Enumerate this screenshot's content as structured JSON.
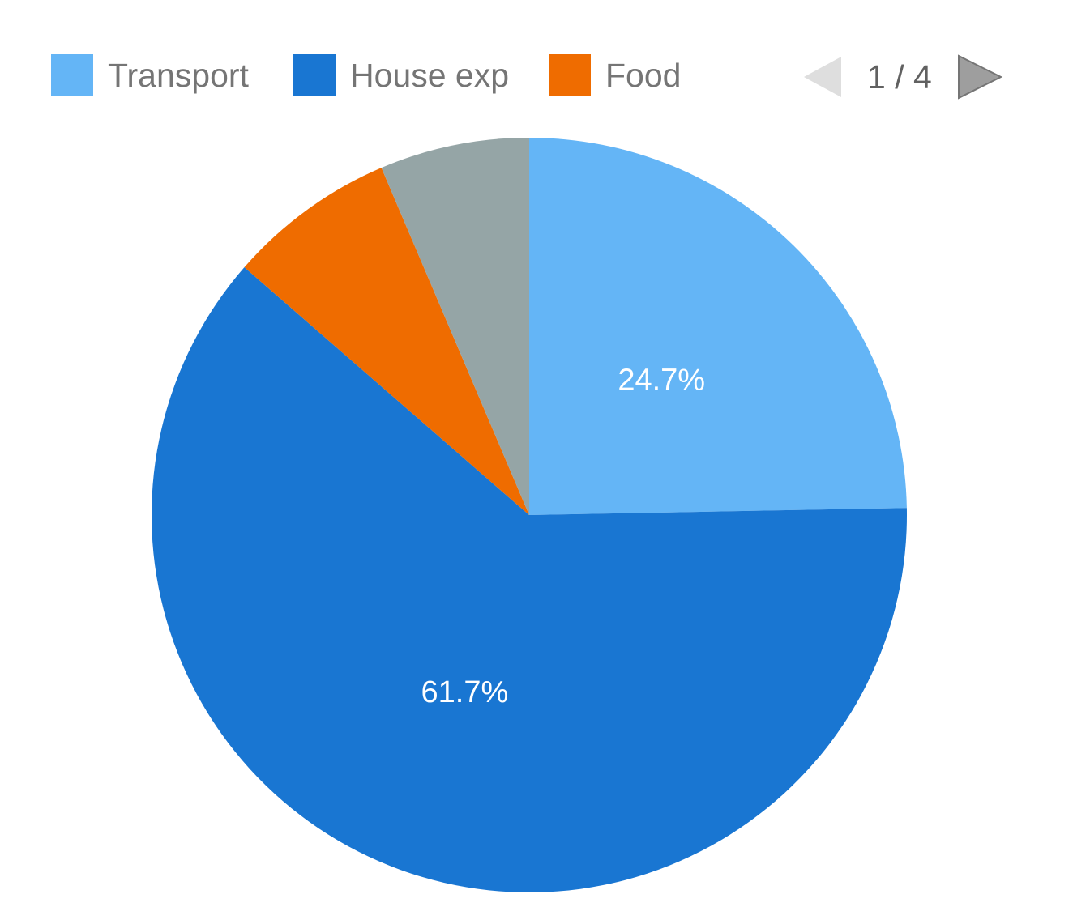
{
  "chart_data": {
    "type": "pie",
    "title": "",
    "slices": [
      {
        "name": "Transport",
        "value": 24.7,
        "color": "#64b5f6",
        "label": "24.7%"
      },
      {
        "name": "House exp",
        "value": 61.7,
        "color": "#1976d2",
        "label": "61.7%"
      },
      {
        "name": "Food",
        "value": 7.2,
        "color": "#ef6c00",
        "label": ""
      },
      {
        "name": "",
        "value": 6.4,
        "color": "#95a5a6",
        "label": ""
      }
    ],
    "legend_position": "top",
    "start_angle_deg": 0
  },
  "legend": {
    "items": [
      {
        "label": "Transport",
        "color": "#64b5f6"
      },
      {
        "label": "House exp",
        "color": "#1976d2"
      },
      {
        "label": "Food",
        "color": "#ef6c00"
      }
    ],
    "pager": {
      "text": "1 / 4",
      "prev_icon": "triangle-left-icon",
      "next_icon": "triangle-right-icon",
      "prev_color": "#dedede",
      "next_color": "#9e9e9e"
    }
  }
}
